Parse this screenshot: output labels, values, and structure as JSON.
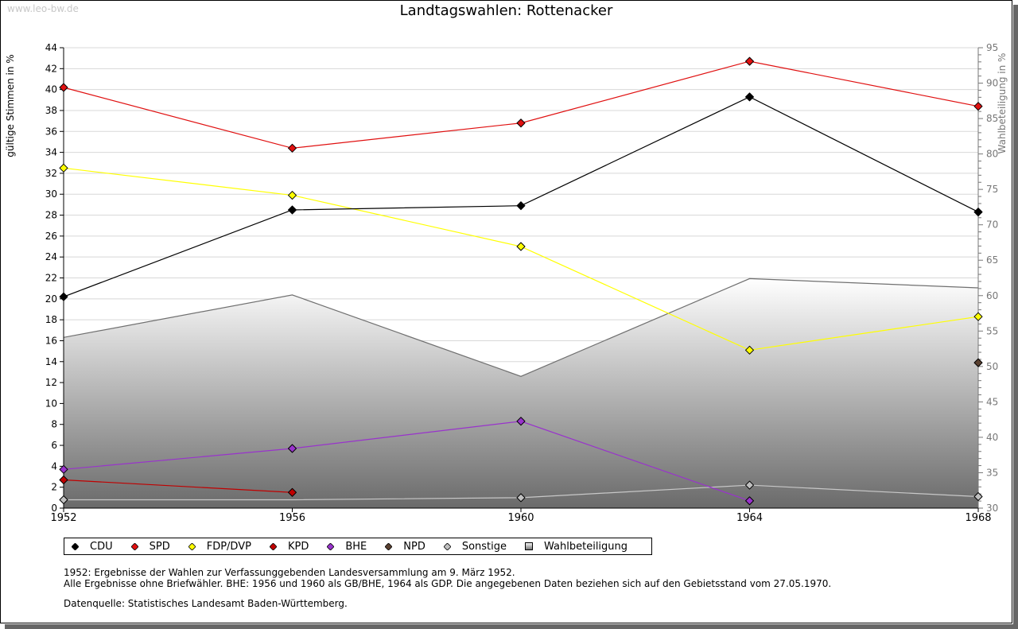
{
  "watermark": "www.leo-bw.de",
  "title": "Landtagswahlen: Rottenacker",
  "notes": [
    "1952: Ergebnisse der Wahlen zur Verfassunggebenden Landesversammlung am 9. März 1952.",
    "Alle Ergebnisse ohne Briefwähler. BHE: 1956 und 1960 als GB/BHE, 1964 als GDP. Die angegebenen Daten beziehen sich auf den Gebietsstand vom 27.05.1970."
  ],
  "source": "Datenquelle: Statistisches Landesamt Baden-Württemberg.",
  "legend": [
    {
      "label": "CDU",
      "color": "#000000",
      "shape": "diamond"
    },
    {
      "label": "SPD",
      "color": "#e01010",
      "shape": "diamond"
    },
    {
      "label": "FDP/DVP",
      "color": "#ffff00",
      "shape": "diamond"
    },
    {
      "label": "KPD",
      "color": "#c00000",
      "shape": "diamond"
    },
    {
      "label": "BHE",
      "color": "#9933cc",
      "shape": "diamond"
    },
    {
      "label": "NPD",
      "color": "#5a4030",
      "shape": "diamond"
    },
    {
      "label": "Sonstige",
      "color": "#c0c0c0",
      "shape": "diamond"
    },
    {
      "label": "Wahlbeteiligung",
      "color": "#999999",
      "shape": "square"
    }
  ],
  "chart_data": {
    "type": "line",
    "title": "Landtagswahlen: Rottenacker",
    "xlabel": "",
    "ylabel": "gültige Stimmen in %",
    "y2label": "Wahlbeteiligung in %",
    "x": [
      1952,
      1956,
      1960,
      1964,
      1968
    ],
    "x_tick_labels": [
      "1952",
      "1956",
      "1960",
      "1964",
      "1968"
    ],
    "ylim": [
      0,
      44
    ],
    "y_ticks": [
      0,
      2,
      4,
      6,
      8,
      10,
      12,
      14,
      16,
      18,
      20,
      22,
      24,
      26,
      28,
      30,
      32,
      34,
      36,
      38,
      40,
      42,
      44
    ],
    "y2lim": [
      30,
      95
    ],
    "y2_ticks": [
      30,
      35,
      40,
      45,
      50,
      55,
      60,
      65,
      70,
      75,
      80,
      85,
      90,
      95
    ],
    "grid": true,
    "legend_position": "bottom",
    "series": [
      {
        "name": "Wahlbeteiligung",
        "type": "area",
        "axis": "right",
        "color": "#777777",
        "values": [
          54.1,
          60.1,
          48.6,
          62.4,
          61.1
        ]
      },
      {
        "name": "Sonstige",
        "axis": "left",
        "color": "#c0c0c0",
        "line_color": "#c8c8c8",
        "values": [
          0.8,
          null,
          1.0,
          2.2,
          1.1
        ],
        "line_values": [
          0.8,
          0.8,
          1.0,
          2.2,
          1.1
        ]
      },
      {
        "name": "NPD",
        "axis": "left",
        "color": "#5a4030",
        "values": [
          null,
          null,
          null,
          null,
          13.9
        ]
      },
      {
        "name": "BHE",
        "axis": "left",
        "color": "#9933cc",
        "values": [
          3.7,
          5.7,
          8.3,
          0.7,
          null
        ]
      },
      {
        "name": "KPD",
        "axis": "left",
        "color": "#c00000",
        "values": [
          2.7,
          1.5,
          null,
          null,
          null
        ]
      },
      {
        "name": "FDP/DVP",
        "axis": "left",
        "color": "#ffff00",
        "values": [
          32.5,
          29.9,
          25.0,
          15.1,
          18.3
        ]
      },
      {
        "name": "CDU",
        "axis": "left",
        "color": "#000000",
        "values": [
          20.2,
          28.5,
          28.9,
          39.3,
          28.3
        ]
      },
      {
        "name": "SPD",
        "axis": "left",
        "color": "#e01010",
        "values": [
          40.2,
          34.4,
          36.8,
          42.7,
          38.4
        ]
      }
    ]
  }
}
